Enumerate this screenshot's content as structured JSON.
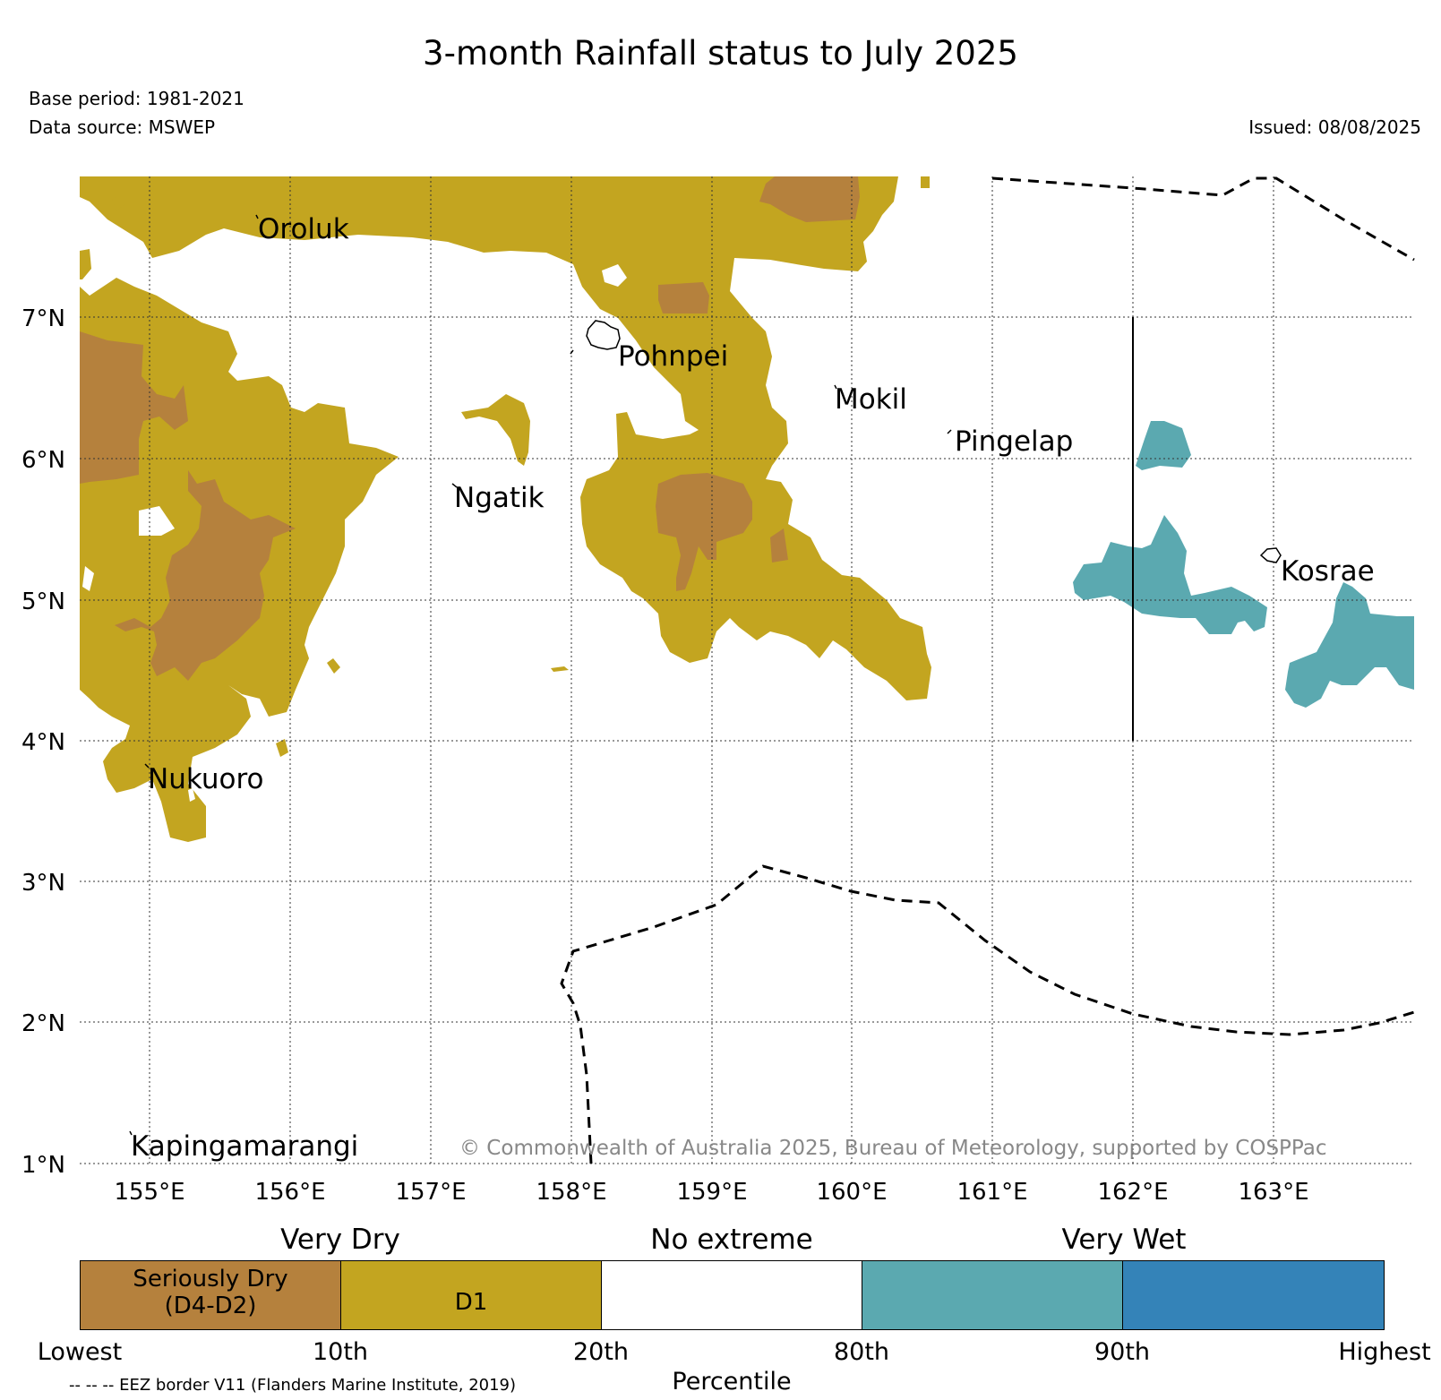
{
  "title": "3-month Rainfall status to July 2025",
  "base_period": "Base period: 1981-2021",
  "data_source": "Data source: MSWEP",
  "issued": "Issued: 08/08/2025",
  "copyright": "© Commonwealth of Australia 2025, Bureau of Meteorology, supported by COSPPac",
  "colors": {
    "seriously_dry": "#b5813d",
    "d1": "#c3a520",
    "no_extreme": "#ffffff",
    "very_wet_80_90": "#5ba9b0",
    "very_wet_90_high": "#3483b8"
  },
  "map": {
    "lon_range": [
      154.5,
      164.0
    ],
    "lat_range": [
      1.0,
      8.0
    ],
    "lon_ticks": [
      "155°E",
      "156°E",
      "157°E",
      "158°E",
      "159°E",
      "160°E",
      "161°E",
      "162°E",
      "163°E"
    ],
    "lat_ticks": [
      "7°N",
      "6°N",
      "5°N",
      "4°N",
      "3°N",
      "2°N",
      "1°N"
    ],
    "places": [
      "Oroluk",
      "Pohnpei",
      "Mokil",
      "Pingelap",
      "Ngatik",
      "Kosrae",
      "Nukuoro",
      "Kapingamarangi"
    ]
  },
  "legend": {
    "very_dry": "Very Dry",
    "no_extreme": "No extreme",
    "very_wet": "Very Wet",
    "seriously_dry_line1": "Seriously Dry",
    "seriously_dry_line2": "(D4-D2)",
    "d1": "D1",
    "percentiles": [
      "Lowest",
      "10th",
      "20th",
      "80th",
      "90th",
      "Highest"
    ],
    "percentile_title": "Percentile",
    "eez_note": "-- -- -- EEZ border V11 (Flanders Marine Institute, 2019)"
  }
}
